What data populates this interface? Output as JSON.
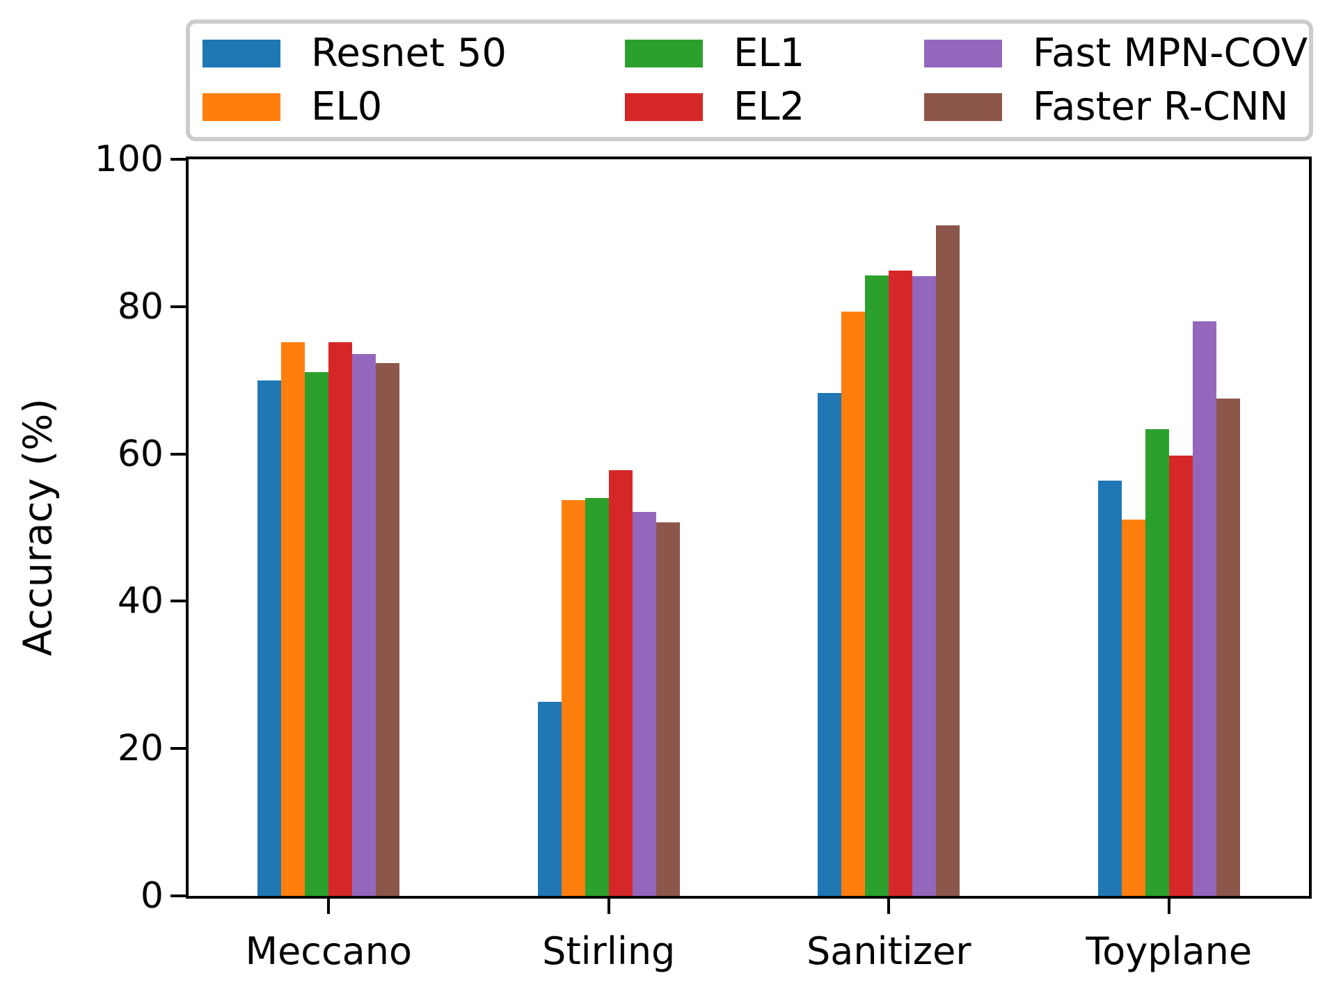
{
  "chart_data": {
    "type": "bar",
    "title": "",
    "xlabel": "",
    "ylabel": "Accuracy (%)",
    "ylim": [
      0,
      100
    ],
    "yticks": [
      0,
      20,
      40,
      60,
      80,
      100
    ],
    "grid": false,
    "legend_position": "top",
    "legend_columns": 3,
    "categories": [
      "Meccano",
      "Stirling",
      "Sanitizer",
      "Toyplane"
    ],
    "series": [
      {
        "name": "Resnet 50",
        "color": "#1f77b4",
        "values": [
          70.0,
          26.3,
          68.3,
          56.4
        ]
      },
      {
        "name": "EL0",
        "color": "#ff7f0e",
        "values": [
          75.2,
          53.7,
          79.3,
          51.1
        ]
      },
      {
        "name": "EL1",
        "color": "#2ca02c",
        "values": [
          71.1,
          54.0,
          84.2,
          63.4
        ]
      },
      {
        "name": "EL2",
        "color": "#d62728",
        "values": [
          75.2,
          57.8,
          84.9,
          59.8
        ]
      },
      {
        "name": "Fast MPN-COV",
        "color": "#9467bd",
        "values": [
          73.6,
          52.1,
          84.1,
          78.0
        ]
      },
      {
        "name": "Faster R-CNN",
        "color": "#8c564b",
        "values": [
          72.3,
          50.7,
          91.0,
          67.5
        ]
      }
    ],
    "axis_color": "#000000",
    "background_color": "#ffffff",
    "legend_border_color": "#cccccc"
  }
}
